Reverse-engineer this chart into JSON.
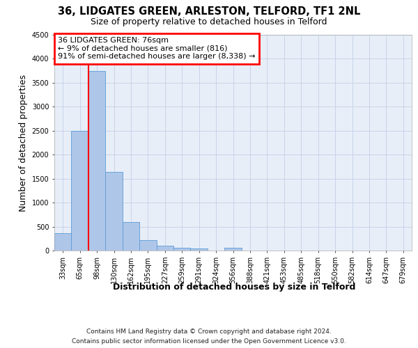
{
  "title1": "36, LIDGATES GREEN, ARLESTON, TELFORD, TF1 2NL",
  "title2": "Size of property relative to detached houses in Telford",
  "xlabel": "Distribution of detached houses by size in Telford",
  "ylabel": "Number of detached properties",
  "footnote1": "Contains HM Land Registry data © Crown copyright and database right 2024.",
  "footnote2": "Contains public sector information licensed under the Open Government Licence v3.0.",
  "categories": [
    "33sqm",
    "65sqm",
    "98sqm",
    "130sqm",
    "162sqm",
    "195sqm",
    "227sqm",
    "259sqm",
    "291sqm",
    "324sqm",
    "356sqm",
    "388sqm",
    "421sqm",
    "453sqm",
    "485sqm",
    "518sqm",
    "550sqm",
    "582sqm",
    "614sqm",
    "647sqm",
    "679sqm"
  ],
  "bar_values": [
    370,
    2500,
    3750,
    1640,
    595,
    225,
    105,
    60,
    40,
    0,
    55,
    0,
    0,
    0,
    0,
    0,
    0,
    0,
    0,
    0,
    0
  ],
  "bar_color": "#aec6e8",
  "bar_edge_color": "#5b9bd5",
  "grid_color": "#c8d4e8",
  "background_color": "#e8eef8",
  "ylim_max": 4500,
  "yticks": [
    0,
    500,
    1000,
    1500,
    2000,
    2500,
    3000,
    3500,
    4000,
    4500
  ],
  "annotation_text_line1": "36 LIDGATES GREEN: 76sqm",
  "annotation_text_line2": "← 9% of detached houses are smaller (816)",
  "annotation_text_line3": "91% of semi-detached houses are larger (8,338) →",
  "annotation_box_color": "white",
  "annotation_border_color": "red",
  "vline_color": "red",
  "vline_x": 1.5,
  "title_fontsize": 10.5,
  "subtitle_fontsize": 9,
  "axis_label_fontsize": 9,
  "tick_fontsize": 7,
  "annotation_fontsize": 8,
  "footnote_fontsize": 6.5
}
